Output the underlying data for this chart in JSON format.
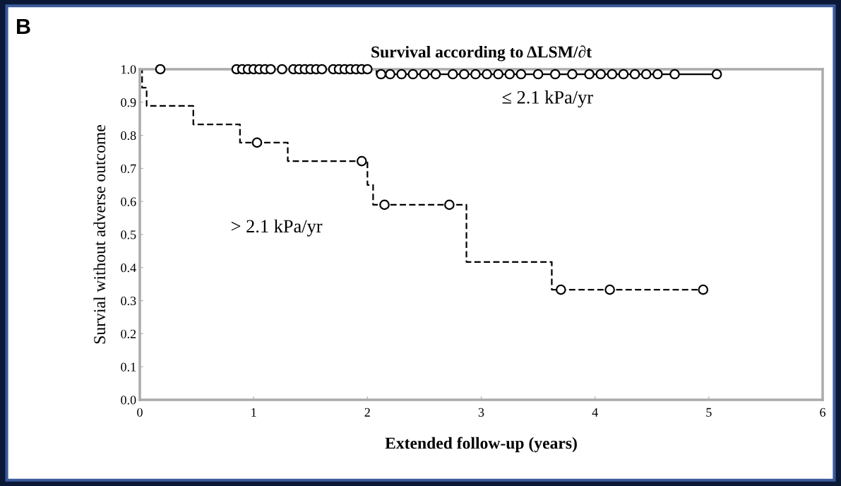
{
  "chart_data": {
    "type": "step",
    "title": "Survival according to ΔLSM/∂t",
    "xlabel": "Extended follow-up (years)",
    "ylabel": "Survial without adverse outcome",
    "xlim": [
      0,
      6
    ],
    "xticks": [
      0,
      1,
      2,
      3,
      4,
      5,
      6
    ],
    "ylim": [
      0,
      1.0
    ],
    "yticks": [
      {
        "value": 0,
        "label": "0.0"
      },
      0.1,
      0.2,
      0.3,
      0.4,
      0.5,
      0.6,
      0.7,
      0.8,
      0.9,
      {
        "value": 1,
        "label": "1.0"
      }
    ],
    "grid": false,
    "legend": false,
    "series": [
      {
        "name": "≤ 2.1 kPa/yr",
        "color": "#000000",
        "line_style": "solid",
        "marker": "none",
        "x": [
          0,
          2.08,
          5.07
        ],
        "values": [
          1.0,
          0.985,
          0.985
        ]
      },
      {
        "type": "scatter",
        "color": "#000000",
        "marker": "circle",
        "x": [
          0.18,
          0.85,
          0.9,
          0.95,
          1.0,
          1.05,
          1.1,
          1.15,
          1.25,
          1.35,
          1.4,
          1.45,
          1.5,
          1.55,
          1.6,
          1.7,
          1.75,
          1.8,
          1.85,
          1.9,
          1.95,
          2.0,
          2.12,
          2.2,
          2.3,
          2.4,
          2.5,
          2.6,
          2.75,
          2.85,
          2.95,
          3.05,
          3.15,
          3.25,
          3.35,
          3.5,
          3.65,
          3.8,
          3.95,
          4.05,
          4.15,
          4.25,
          4.35,
          4.45,
          4.55,
          4.7,
          5.07
        ],
        "values": [
          1.0,
          1.0,
          1.0,
          1.0,
          1.0,
          1.0,
          1.0,
          1.0,
          1.0,
          1.0,
          1.0,
          1.0,
          1.0,
          1.0,
          1.0,
          1.0,
          1.0,
          1.0,
          1.0,
          1.0,
          1.0,
          1.0,
          0.985,
          0.985,
          0.985,
          0.985,
          0.985,
          0.985,
          0.985,
          0.985,
          0.985,
          0.985,
          0.985,
          0.985,
          0.985,
          0.985,
          0.985,
          0.985,
          0.985,
          0.985,
          0.985,
          0.985,
          0.985,
          0.985,
          0.985,
          0.985,
          0.985
        ]
      },
      {
        "name": "> 2.1 kPa/yr",
        "color": "#000000",
        "line_style": "dashed",
        "marker": "none",
        "x": [
          0,
          0.02,
          0.06,
          0.47,
          0.88,
          1.3,
          2.0,
          2.05,
          2.87,
          3.62,
          4.95
        ],
        "values": [
          1.0,
          0.944,
          0.889,
          0.833,
          0.778,
          0.722,
          0.65,
          0.59,
          0.417,
          0.333,
          0.333
        ]
      },
      {
        "type": "scatter",
        "color": "#000000",
        "marker": "circle",
        "x": [
          1.03,
          1.95,
          2.15,
          2.72,
          3.7,
          4.13,
          4.95
        ],
        "values": [
          0.778,
          0.722,
          0.59,
          0.59,
          0.333,
          0.333,
          0.333
        ]
      }
    ],
    "annotations": [
      "B"
    ]
  }
}
